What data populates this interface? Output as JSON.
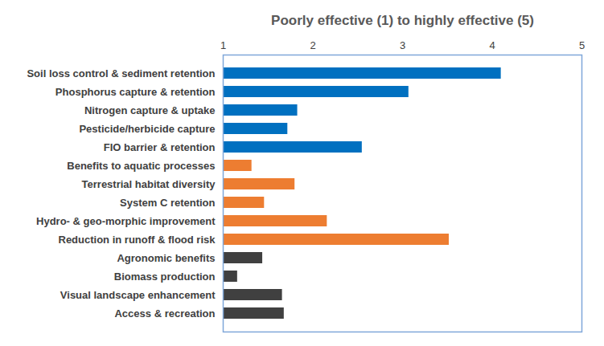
{
  "chart_data": {
    "type": "bar",
    "orientation": "horizontal",
    "title": "Poorly effective (1) to highly effective (5)",
    "categories": [
      "Soil loss control & sediment retention",
      "Phosphorus capture & retention",
      "Nitrogen capture & uptake",
      "Pesticide/herbicide capture",
      "FIO barrier & retention",
      "Benefits to aquatic processes",
      "Terrestrial habitat diversity",
      "System C retention",
      "Hydro- & geo-morphic improvement",
      "Reduction in runoff & flood risk",
      "Agronomic benefits",
      "Biomass production",
      "Visual landscape enhancement",
      "Access & recreation"
    ],
    "values": [
      4.1,
      3.07,
      1.83,
      1.72,
      2.55,
      1.32,
      1.8,
      1.46,
      2.16,
      3.52,
      1.44,
      1.16,
      1.66,
      1.68
    ],
    "colors": [
      "#0070c0",
      "#0070c0",
      "#0070c0",
      "#0070c0",
      "#0070c0",
      "#ed7d31",
      "#ed7d31",
      "#ed7d31",
      "#ed7d31",
      "#ed7d31",
      "#404040",
      "#404040",
      "#404040",
      "#404040"
    ],
    "xlim": [
      1,
      5
    ],
    "xticks": [
      1,
      2,
      3,
      4,
      5
    ],
    "grid": false
  }
}
